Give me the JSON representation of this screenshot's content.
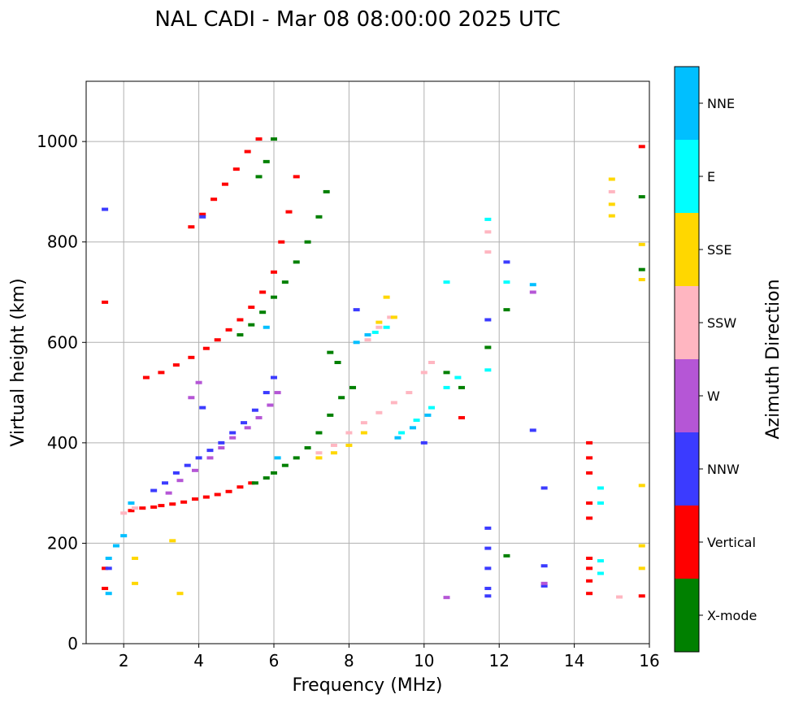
{
  "chart_data": {
    "type": "scatter",
    "title": "NAL CADI - Mar 08 08:00:00 2025 UTC",
    "xlabel": "Frequency (MHz)",
    "ylabel": "Virtual height (km)",
    "xlim": [
      1,
      16
    ],
    "ylim": [
      0,
      1120
    ],
    "xticks": [
      2,
      4,
      6,
      8,
      10,
      12,
      14,
      16
    ],
    "yticks": [
      0,
      200,
      400,
      600,
      800,
      1000
    ],
    "grid": true,
    "colorbar": {
      "title": "Azimuth Direction",
      "categories": [
        {
          "name": "X-mode",
          "color": "#008000"
        },
        {
          "name": "Vertical",
          "color": "#ff0000"
        },
        {
          "name": "NNW",
          "color": "#3b3bff"
        },
        {
          "name": "W",
          "color": "#b556d6"
        },
        {
          "name": "SSW",
          "color": "#ffb6c1"
        },
        {
          "name": "SSE",
          "color": "#ffd700"
        },
        {
          "name": "E",
          "color": "#00ffff"
        },
        {
          "name": "NNE",
          "color": "#00bfff"
        }
      ]
    },
    "series": [
      {
        "name": "Vertical",
        "points": [
          [
            2.2,
            265
          ],
          [
            2.5,
            270
          ],
          [
            2.8,
            272
          ],
          [
            3.0,
            275
          ],
          [
            3.3,
            278
          ],
          [
            3.6,
            282
          ],
          [
            3.9,
            288
          ],
          [
            4.2,
            292
          ],
          [
            4.5,
            297
          ],
          [
            4.8,
            303
          ],
          [
            5.1,
            312
          ],
          [
            5.4,
            320
          ],
          [
            2.6,
            530
          ],
          [
            3.0,
            540
          ],
          [
            3.4,
            555
          ],
          [
            3.8,
            570
          ],
          [
            4.2,
            588
          ],
          [
            4.5,
            605
          ],
          [
            4.8,
            625
          ],
          [
            5.1,
            645
          ],
          [
            5.4,
            670
          ],
          [
            5.7,
            700
          ],
          [
            6.0,
            740
          ],
          [
            6.2,
            800
          ],
          [
            6.4,
            860
          ],
          [
            6.6,
            930
          ],
          [
            3.8,
            830
          ],
          [
            4.1,
            855
          ],
          [
            4.4,
            885
          ],
          [
            4.7,
            915
          ],
          [
            5.0,
            945
          ],
          [
            5.3,
            980
          ],
          [
            5.6,
            1005
          ],
          [
            1.5,
            680
          ],
          [
            1.5,
            150
          ],
          [
            1.5,
            110
          ],
          [
            14.4,
            400
          ],
          [
            14.4,
            370
          ],
          [
            14.4,
            340
          ],
          [
            14.4,
            280
          ],
          [
            14.4,
            250
          ],
          [
            14.4,
            150
          ],
          [
            14.4,
            125
          ],
          [
            14.4,
            100
          ],
          [
            14.4,
            170
          ],
          [
            15.8,
            990
          ],
          [
            15.8,
            95
          ],
          [
            11.0,
            450
          ]
        ]
      },
      {
        "name": "X-mode",
        "points": [
          [
            5.5,
            320
          ],
          [
            5.8,
            330
          ],
          [
            6.0,
            340
          ],
          [
            6.3,
            355
          ],
          [
            6.6,
            370
          ],
          [
            6.9,
            390
          ],
          [
            7.2,
            420
          ],
          [
            7.5,
            455
          ],
          [
            7.8,
            490
          ],
          [
            8.1,
            510
          ],
          [
            5.1,
            615
          ],
          [
            5.4,
            635
          ],
          [
            5.7,
            660
          ],
          [
            6.0,
            690
          ],
          [
            6.3,
            720
          ],
          [
            6.6,
            760
          ],
          [
            6.9,
            800
          ],
          [
            7.2,
            850
          ],
          [
            7.4,
            900
          ],
          [
            5.6,
            930
          ],
          [
            5.8,
            960
          ],
          [
            6.0,
            1005
          ],
          [
            7.5,
            580
          ],
          [
            7.7,
            560
          ],
          [
            10.6,
            540
          ],
          [
            11.0,
            510
          ],
          [
            11.7,
            590
          ],
          [
            12.2,
            665
          ],
          [
            12.2,
            175
          ],
          [
            15.8,
            745
          ],
          [
            15.8,
            890
          ]
        ]
      },
      {
        "name": "NNW",
        "points": [
          [
            1.5,
            865
          ],
          [
            1.6,
            150
          ],
          [
            2.8,
            305
          ],
          [
            3.1,
            320
          ],
          [
            3.4,
            340
          ],
          [
            3.7,
            355
          ],
          [
            4.0,
            370
          ],
          [
            4.3,
            385
          ],
          [
            4.6,
            400
          ],
          [
            4.9,
            420
          ],
          [
            5.2,
            440
          ],
          [
            5.5,
            465
          ],
          [
            5.8,
            500
          ],
          [
            6.0,
            530
          ],
          [
            4.1,
            850
          ],
          [
            4.1,
            470
          ],
          [
            11.7,
            230
          ],
          [
            11.7,
            190
          ],
          [
            11.7,
            150
          ],
          [
            11.7,
            110
          ],
          [
            11.7,
            95
          ],
          [
            12.9,
            425
          ],
          [
            13.2,
            310
          ],
          [
            13.2,
            155
          ],
          [
            13.2,
            115
          ],
          [
            11.7,
            645
          ],
          [
            12.2,
            760
          ],
          [
            8.2,
            665
          ],
          [
            10.0,
            400
          ]
        ]
      },
      {
        "name": "W",
        "points": [
          [
            3.2,
            300
          ],
          [
            3.5,
            325
          ],
          [
            3.9,
            345
          ],
          [
            4.3,
            370
          ],
          [
            4.6,
            390
          ],
          [
            4.9,
            410
          ],
          [
            5.3,
            430
          ],
          [
            5.6,
            450
          ],
          [
            5.9,
            475
          ],
          [
            6.1,
            500
          ],
          [
            4.0,
            520
          ],
          [
            3.8,
            490
          ],
          [
            12.9,
            700
          ],
          [
            13.2,
            120
          ],
          [
            10.6,
            92
          ]
        ]
      },
      {
        "name": "SSW",
        "points": [
          [
            2.0,
            260
          ],
          [
            2.3,
            270
          ],
          [
            7.2,
            380
          ],
          [
            7.6,
            395
          ],
          [
            8.0,
            420
          ],
          [
            8.4,
            440
          ],
          [
            8.8,
            460
          ],
          [
            9.2,
            480
          ],
          [
            9.6,
            500
          ],
          [
            10.0,
            540
          ],
          [
            10.2,
            560
          ],
          [
            8.5,
            605
          ],
          [
            8.8,
            630
          ],
          [
            9.1,
            650
          ],
          [
            11.7,
            820
          ],
          [
            11.7,
            780
          ],
          [
            15.0,
            900
          ],
          [
            15.2,
            93
          ]
        ]
      },
      {
        "name": "SSE",
        "points": [
          [
            2.3,
            120
          ],
          [
            2.3,
            170
          ],
          [
            7.2,
            370
          ],
          [
            7.6,
            380
          ],
          [
            8.0,
            395
          ],
          [
            8.4,
            420
          ],
          [
            8.8,
            640
          ],
          [
            9.0,
            690
          ],
          [
            9.2,
            650
          ],
          [
            15.0,
            925
          ],
          [
            15.0,
            875
          ],
          [
            15.0,
            852
          ],
          [
            15.8,
            795
          ],
          [
            15.8,
            725
          ],
          [
            15.8,
            315
          ],
          [
            15.8,
            195
          ],
          [
            15.8,
            150
          ],
          [
            3.5,
            100
          ],
          [
            3.3,
            205
          ]
        ]
      },
      {
        "name": "E",
        "points": [
          [
            8.7,
            620
          ],
          [
            9.0,
            630
          ],
          [
            9.4,
            420
          ],
          [
            9.8,
            445
          ],
          [
            10.2,
            470
          ],
          [
            10.6,
            510
          ],
          [
            10.9,
            530
          ],
          [
            11.7,
            845
          ],
          [
            11.7,
            545
          ],
          [
            12.2,
            720
          ],
          [
            14.7,
            310
          ],
          [
            14.7,
            280
          ],
          [
            14.7,
            165
          ],
          [
            14.7,
            140
          ],
          [
            10.6,
            720
          ]
        ]
      },
      {
        "name": "NNE",
        "points": [
          [
            1.6,
            170
          ],
          [
            1.8,
            195
          ],
          [
            2.0,
            215
          ],
          [
            2.2,
            280
          ],
          [
            1.6,
            100
          ],
          [
            8.2,
            600
          ],
          [
            8.5,
            615
          ],
          [
            9.3,
            410
          ],
          [
            9.7,
            430
          ],
          [
            10.1,
            455
          ],
          [
            12.9,
            715
          ],
          [
            6.1,
            370
          ],
          [
            5.8,
            630
          ]
        ]
      }
    ]
  }
}
